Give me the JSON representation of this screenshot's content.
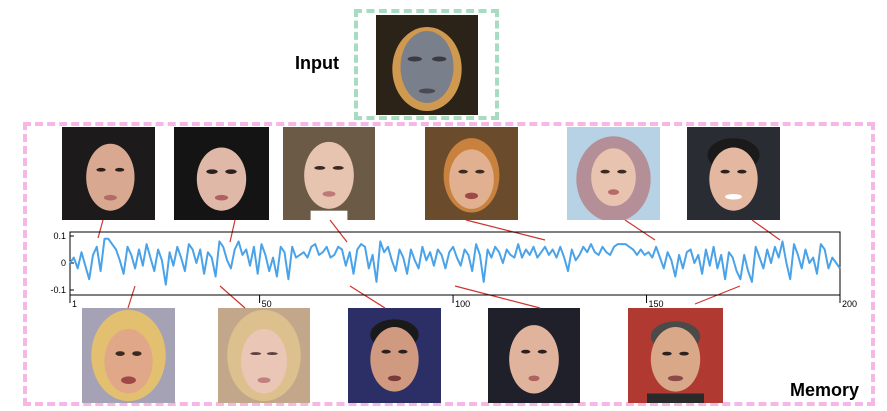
{
  "input_label": "Input",
  "memory_label": "Memory",
  "chart_data": {
    "type": "line",
    "title": "",
    "xlabel": "",
    "ylabel": "",
    "xlim": [
      1,
      200
    ],
    "ylim": [
      -0.1,
      0.1
    ],
    "x_ticks": [
      "1",
      "50",
      "100",
      "150",
      "200"
    ],
    "y_ticks": [
      "0.1",
      "0",
      "-0.1"
    ],
    "series": [
      {
        "color": "#4aa3e8",
        "values": [
          0.0,
          0.02,
          -0.02,
          0.04,
          -0.01,
          -0.06,
          0.03,
          0.06,
          -0.03,
          0.09,
          0.09,
          0.07,
          0.05,
          0.01,
          -0.04,
          0.06,
          0.03,
          -0.02,
          0.05,
          -0.01,
          0.07,
          0.02,
          -0.03,
          0.05,
          0.01,
          -0.08,
          0.04,
          -0.01,
          0.06,
          0.02,
          -0.03,
          0.07,
          0.05,
          0.0,
          0.05,
          -0.04,
          0.04,
          0.02,
          -0.05,
          0.08,
          0.06,
          0.01,
          -0.02,
          0.05,
          0.08,
          0.03,
          0.05,
          -0.01,
          0.06,
          -0.04,
          0.07,
          0.03,
          -0.03,
          0.02,
          -0.05,
          0.06,
          0.04,
          -0.06,
          0.06,
          0.02,
          0.03,
          0.04,
          0.02,
          0.06,
          0.07,
          0.03,
          0.04,
          0.06,
          0.02,
          0.03,
          0.06,
          0.05,
          -0.01,
          0.04,
          -0.04,
          0.05,
          0.07,
          0.06,
          -0.02,
          0.03,
          -0.07,
          0.08,
          0.04,
          0.06,
          0.01,
          -0.03,
          0.05,
          0.02,
          -0.04,
          0.05,
          0.01,
          -0.02,
          0.06,
          0.01,
          0.04,
          -0.01,
          0.05,
          0.03,
          -0.02,
          0.04,
          0.06,
          0.02,
          -0.01,
          0.05,
          0.03,
          -0.03,
          0.07,
          0.03,
          -0.07,
          0.05,
          0.02,
          0.06,
          0.04,
          0.0,
          0.05,
          0.03,
          0.02,
          0.07,
          0.02,
          0.05,
          0.03,
          0.06,
          0.02,
          0.04,
          0.06,
          0.03,
          0.05,
          0.02,
          0.06,
          0.02,
          -0.03,
          0.05,
          0.01,
          0.03,
          0.06,
          0.04,
          0.07,
          0.04,
          0.03,
          0.06,
          0.04,
          0.03,
          0.06,
          0.07,
          0.07,
          0.07,
          0.06,
          0.05,
          0.03,
          0.05,
          0.03,
          0.04,
          0.02,
          0.06,
          0.02,
          -0.02,
          0.04,
          0.01,
          -0.05,
          0.03,
          -0.02,
          0.04,
          0.05,
          0.0,
          0.03,
          -0.04,
          0.05,
          -0.01,
          0.06,
          -0.02,
          0.03,
          -0.06,
          0.04,
          0.02,
          -0.03,
          -0.06,
          0.03,
          -0.03,
          -0.07,
          0.06,
          0.02,
          -0.02,
          0.05,
          0.0,
          0.06,
          0.02,
          0.08,
          0.0,
          -0.06,
          0.07,
          0.03,
          -0.02,
          0.05,
          0.0,
          0.02,
          -0.04,
          0.07,
          0.05,
          -0.02,
          0.02,
          0.0,
          -0.02
        ]
      }
    ]
  }
}
